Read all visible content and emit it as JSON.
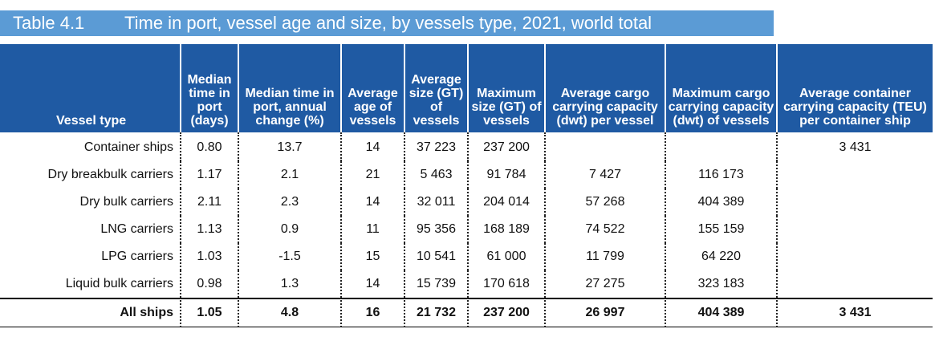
{
  "title": {
    "number": "Table 4.1",
    "text": "Time in port, vessel age and size, by vessels type, 2021, world total"
  },
  "columns": [
    "Vessel type",
    "Median time in port (days)",
    "Median time in port, annual change (%)",
    "Average age of vessels",
    "Average size (GT) of vessels",
    "Maximum size (GT) of vessels",
    "Average cargo carrying capacity (dwt) per vessel",
    "Maximum cargo carrying capacity (dwt) of vessels",
    "Average container carrying capacity (TEU) per container ship"
  ],
  "rows": [
    [
      "Container ships",
      "0.80",
      "13.7",
      "14",
      "37 223",
      "237 200",
      "",
      "",
      "3 431"
    ],
    [
      "Dry breakbulk carriers",
      "1.17",
      "2.1",
      "21",
      "5 463",
      "91 784",
      "7 427",
      "116 173",
      ""
    ],
    [
      "Dry bulk carriers",
      "2.11",
      "2.3",
      "14",
      "32 011",
      "204 014",
      "57 268",
      "404 389",
      ""
    ],
    [
      "LNG carriers",
      "1.13",
      "0.9",
      "11",
      "95 356",
      "168 189",
      "74 522",
      "155 159",
      ""
    ],
    [
      "LPG carriers",
      "1.03",
      "-1.5",
      "15",
      "10 541",
      "61 000",
      "11 799",
      "64 220",
      ""
    ],
    [
      "Liquid bulk carriers",
      "0.98",
      "1.3",
      "14",
      "15 739",
      "170 618",
      "27 275",
      "323 183",
      ""
    ]
  ],
  "total": [
    "All ships",
    "1.05",
    "4.8",
    "16",
    "21 732",
    "237 200",
    "26 997",
    "404 389",
    "3 431"
  ]
}
